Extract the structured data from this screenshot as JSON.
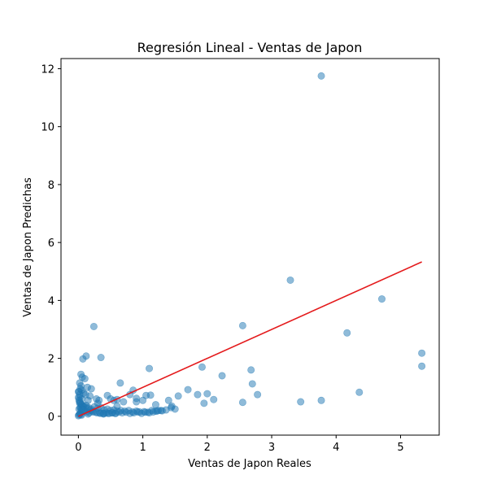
{
  "chart_data": {
    "type": "scatter",
    "title": "Regresión Lineal - Ventas de Japon",
    "xlabel": "Ventas de Japon Reales",
    "ylabel": "Ventas de Japon Predichas",
    "xlim": [
      -0.27,
      5.6
    ],
    "ylim": [
      -0.65,
      12.35
    ],
    "xticks": [
      0,
      1,
      2,
      3,
      4,
      5
    ],
    "yticks": [
      0,
      2,
      4,
      6,
      8,
      10,
      12
    ],
    "grid": false,
    "colors": {
      "points": "#1f77b4",
      "line": "#e41a1c",
      "axes": "#000000"
    },
    "regression_line": {
      "x": [
        0,
        5.33
      ],
      "y": [
        0,
        5.33
      ]
    },
    "points": {
      "x": [
        3.77,
        3.29,
        4.71,
        2.55,
        0.24,
        4.17,
        0.35,
        0.12,
        0.07,
        0.04,
        0.06,
        1.1,
        0.65,
        0.1,
        0.02,
        0.04,
        0.14,
        0.03,
        0.05,
        0.01,
        0.2,
        0.08,
        0.11,
        0.18,
        0.02,
        0.05,
        0.15,
        0.28,
        0.32,
        0.45,
        0.5,
        0.55,
        0.6,
        0.7,
        0.8,
        0.85,
        0.9,
        1.0,
        1.05,
        1.12,
        1.2,
        1.3,
        1.4,
        1.45,
        1.5,
        1.55,
        1.7,
        1.85,
        1.92,
        1.95,
        2.0,
        2.1,
        2.23,
        2.55,
        2.68,
        2.7,
        2.78,
        3.45,
        3.77,
        4.36,
        5.33,
        5.33,
        0.02,
        0.05,
        0.08,
        0.12,
        0.16,
        0.2,
        0.25,
        0.3,
        0.35,
        0.4,
        0.45,
        0.5,
        0.55,
        0.6,
        0.66,
        0.72,
        0.78,
        0.84,
        0.9,
        0.95,
        1.02,
        1.08,
        1.14,
        1.22,
        1.28,
        1.36,
        1.44,
        0.01,
        0.03,
        0.04,
        0.06,
        0.09,
        0.13,
        0.17,
        0.22,
        0.27,
        0.33,
        0.38,
        0.43,
        0.48,
        0.53,
        0.58,
        0.0,
        0.01,
        0.02,
        0.03,
        0.04,
        0.05,
        0.0,
        0.01,
        0.02,
        0.03,
        0.05,
        0.07,
        0.1,
        0.14,
        0.19,
        0.23,
        0.29,
        0.34,
        0.39,
        0.46,
        0.52,
        0.57,
        0.63,
        0.68,
        0.74,
        0.8,
        0.86,
        0.92,
        0.98,
        1.04,
        1.1,
        1.16,
        1.24,
        0.0,
        0.02,
        0.04,
        0.06,
        0.08,
        0.3,
        0.6,
        0.9,
        1.2,
        0.15,
        0.4
      ],
      "y": [
        11.75,
        4.7,
        4.05,
        3.13,
        3.1,
        2.88,
        2.03,
        2.08,
        1.98,
        1.45,
        1.35,
        1.65,
        1.15,
        1.3,
        1.15,
        1.05,
        1.0,
        0.95,
        0.9,
        0.85,
        0.95,
        0.8,
        0.75,
        0.7,
        0.65,
        0.6,
        0.55,
        0.6,
        0.55,
        0.72,
        0.6,
        0.55,
        0.58,
        0.5,
        0.75,
        0.9,
        0.62,
        0.55,
        0.72,
        0.73,
        0.18,
        0.19,
        0.55,
        0.35,
        0.25,
        0.7,
        0.92,
        0.75,
        1.7,
        0.45,
        0.78,
        0.58,
        1.4,
        0.48,
        1.6,
        1.12,
        0.75,
        0.5,
        0.55,
        0.83,
        2.18,
        1.73,
        0.45,
        0.4,
        0.35,
        0.38,
        0.3,
        0.25,
        0.33,
        0.28,
        0.3,
        0.22,
        0.25,
        0.2,
        0.22,
        0.18,
        0.2,
        0.18,
        0.2,
        0.15,
        0.18,
        0.15,
        0.16,
        0.14,
        0.2,
        0.18,
        0.2,
        0.22,
        0.3,
        0.25,
        0.3,
        0.22,
        0.2,
        0.18,
        0.15,
        0.12,
        0.18,
        0.14,
        0.12,
        0.1,
        0.12,
        0.1,
        0.12,
        0.1,
        0.02,
        0.05,
        0.08,
        0.1,
        0.06,
        0.04,
        0.65,
        0.55,
        0.5,
        0.45,
        0.4,
        0.35,
        0.32,
        0.28,
        0.2,
        0.15,
        0.12,
        0.1,
        0.08,
        0.1,
        0.12,
        0.1,
        0.15,
        0.12,
        0.14,
        0.1,
        0.12,
        0.15,
        0.1,
        0.14,
        0.12,
        0.15,
        0.2,
        0.85,
        0.75,
        0.3,
        0.25,
        0.22,
        0.45,
        0.35,
        0.5,
        0.4,
        0.08,
        0.1
      ]
    }
  }
}
